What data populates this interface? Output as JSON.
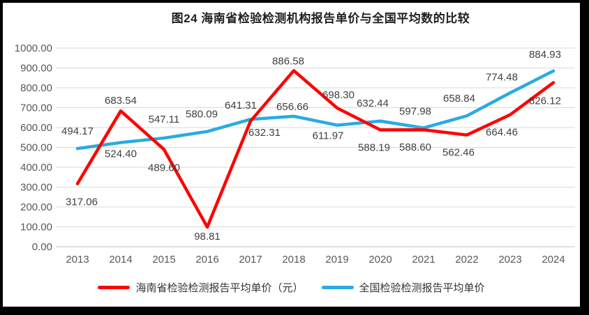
{
  "chart_data": {
    "type": "line",
    "title": "图24  海南省检验检测机构报告单价与全国平均数的比较",
    "categories": [
      "2013",
      "2014",
      "2015",
      "2016",
      "2017",
      "2018",
      "2019",
      "2020",
      "2021",
      "2022",
      "2023",
      "2024"
    ],
    "series": [
      {
        "name": "海南省检验检测报告平均单价（元）",
        "color": "#FF0000",
        "values": [
          317.06,
          683.54,
          489.6,
          98.81,
          632.31,
          886.58,
          698.3,
          588.19,
          588.6,
          562.46,
          664.46,
          826.12
        ],
        "label_dx": [
          6,
          0,
          0,
          0,
          20,
          -8,
          2,
          -9,
          -12,
          -12,
          -12,
          -12
        ],
        "label_dy": [
          26,
          -15,
          26,
          13,
          16,
          -14,
          -19,
          25,
          25,
          25,
          25,
          26
        ]
      },
      {
        "name": "全国检验检测报告平均单价",
        "color": "#29ABE2",
        "values": [
          494.17,
          524.4,
          547.11,
          580.09,
          641.31,
          656.66,
          611.97,
          632.44,
          597.98,
          658.84,
          774.48,
          884.93
        ],
        "label_dx": [
          0,
          0,
          0,
          -8,
          -14,
          -2,
          -13,
          -11,
          -12,
          -11,
          -12,
          -12
        ],
        "label_dy": [
          -25,
          16,
          -27,
          -25,
          -20,
          -14,
          15,
          -26,
          -24,
          -25,
          -23,
          -24
        ]
      }
    ],
    "ylim": [
      0,
      1000
    ],
    "ytick_step": 100,
    "ytick_decimals": 2,
    "grid": true,
    "legend_position": "bottom",
    "colors": {
      "gridline": "#D9D9D9",
      "axis_line": "#BFBFBF",
      "axis_text": "#595959",
      "data_label_text": "#404040"
    }
  }
}
